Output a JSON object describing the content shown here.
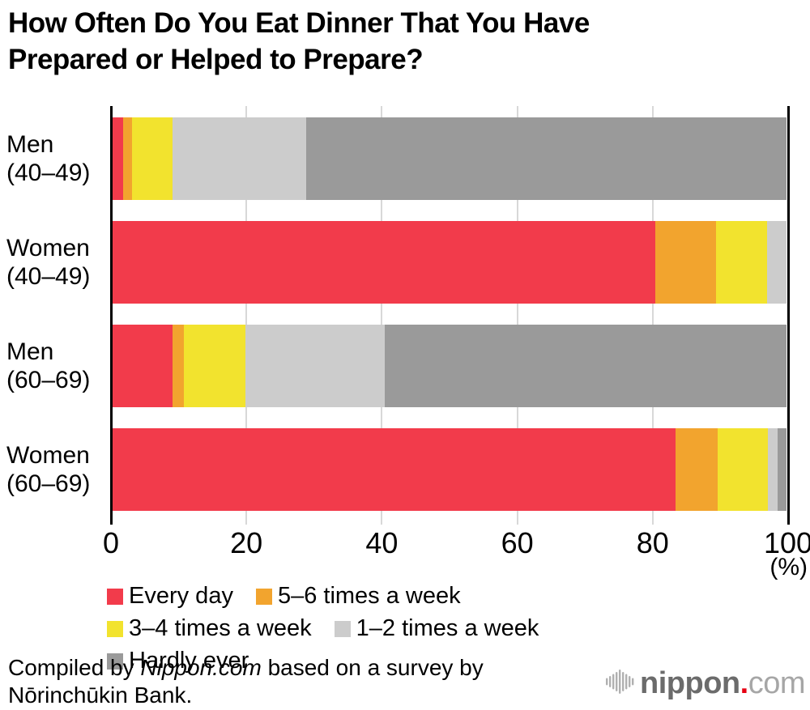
{
  "title": "How Often Do You Eat Dinner That You Have\nPrepared or Helped to Prepare?",
  "chart_data": {
    "type": "bar",
    "orientation": "horizontal",
    "stacked": true,
    "title": "How Often Do You Eat Dinner That You Have Prepared or Helped to Prepare?",
    "categories": [
      "Men\n(40–49)",
      "Women\n(40–49)",
      "Men\n(60–69)",
      "Women\n(60–69)"
    ],
    "series": [
      {
        "name": "Every day",
        "color": "#F23B4B",
        "values": [
          1.6,
          80.5,
          9.0,
          83.5
        ]
      },
      {
        "name": "5–6 times a week",
        "color": "#F2A42E",
        "values": [
          1.4,
          9.0,
          1.6,
          6.2
        ]
      },
      {
        "name": "3–4 times a week",
        "color": "#F2E32E",
        "values": [
          6.0,
          7.6,
          9.1,
          7.5
        ]
      },
      {
        "name": "1–2 times a week",
        "color": "#CCCCCC",
        "values": [
          19.8,
          2.9,
          20.7,
          1.4
        ]
      },
      {
        "name": "Hardly ever",
        "color": "#9A9A9A",
        "values": [
          71.2,
          0.0,
          59.6,
          1.4
        ]
      }
    ],
    "xlim": [
      0,
      100
    ],
    "xticks": [
      0,
      20,
      40,
      60,
      80,
      100
    ],
    "x_unit_label": "(%)",
    "grid": true,
    "gridline_color": "#D8D8D8",
    "axis_color": "#000000",
    "legend_position": "bottom"
  },
  "footer": {
    "credit_prefix": "Compiled by ",
    "credit_source": "Nippon.com",
    "credit_mid": " based on a survey by",
    "credit_line2": "Nōrinchūkin Bank.",
    "logo": {
      "text_bold": "nippon",
      "text_dot": ".",
      "text_rest": "com",
      "dot_color": "#E60012",
      "wave_color": "#B0B0B0"
    }
  }
}
